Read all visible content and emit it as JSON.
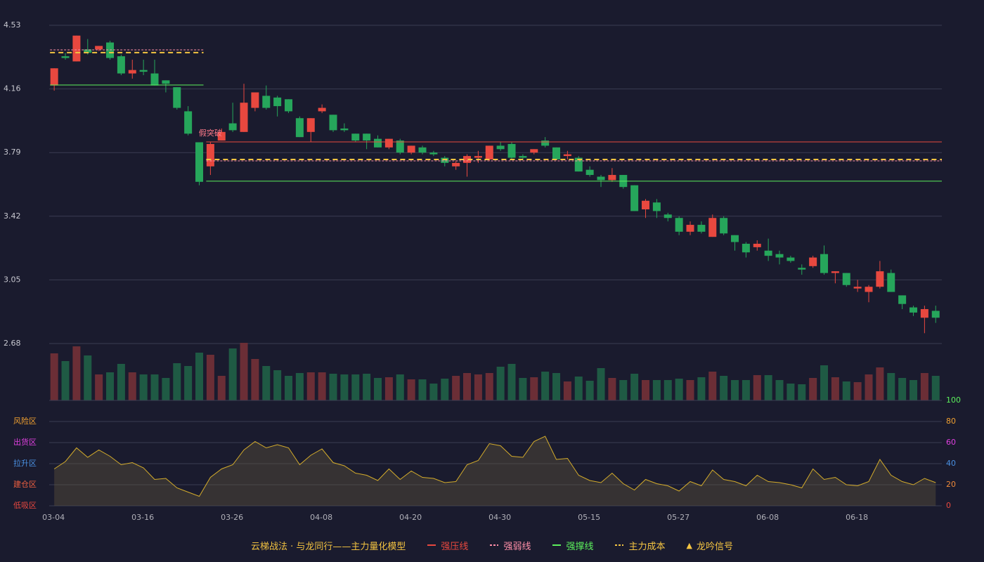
{
  "chart_data": [
    {
      "type": "candlestick",
      "categories": [
        "03-04",
        null,
        null,
        null,
        null,
        null,
        null,
        null,
        "03-16",
        null,
        null,
        null,
        null,
        null,
        null,
        null,
        "03-26",
        null,
        null,
        null,
        null,
        null,
        null,
        null,
        "04-08",
        null,
        null,
        null,
        null,
        null,
        null,
        null,
        "04-20",
        null,
        null,
        null,
        null,
        null,
        null,
        null,
        "04-30",
        null,
        null,
        null,
        null,
        null,
        null,
        null,
        "05-15",
        null,
        null,
        null,
        null,
        null,
        null,
        null,
        "05-27",
        null,
        null,
        null,
        null,
        null,
        null,
        null,
        "06-08",
        null,
        null,
        null,
        null,
        null,
        null,
        null,
        "06-18",
        null,
        null,
        null,
        null,
        null,
        null,
        null
      ],
      "open": [
        4.18,
        4.35,
        4.32,
        4.39,
        4.39,
        4.43,
        4.35,
        4.25,
        4.27,
        4.25,
        4.21,
        4.17,
        4.03,
        3.85,
        3.71,
        3.86,
        3.96,
        3.91,
        4.05,
        4.12,
        4.11,
        4.1,
        3.99,
        3.91,
        4.03,
        4.01,
        3.93,
        3.9,
        3.9,
        3.87,
        3.82,
        3.86,
        3.79,
        3.82,
        3.79,
        3.76,
        3.71,
        3.73,
        3.76,
        3.75,
        3.83,
        3.84,
        3.77,
        3.79,
        3.86,
        3.82,
        3.77,
        3.76,
        3.69,
        3.65,
        3.63,
        3.66,
        3.6,
        3.46,
        3.5,
        3.43,
        3.41,
        3.33,
        3.37,
        3.3,
        3.41,
        3.31,
        3.26,
        3.24,
        3.22,
        3.2,
        3.18,
        3.12,
        3.13,
        3.2,
        3.09,
        3.09,
        3.0,
        2.98,
        3.01,
        3.09,
        2.96,
        2.89,
        2.83,
        2.87
      ],
      "high": [
        4.28,
        4.37,
        4.47,
        4.45,
        4.41,
        4.44,
        4.36,
        4.33,
        4.33,
        4.33,
        4.21,
        4.17,
        4.06,
        3.85,
        3.85,
        3.93,
        4.08,
        4.19,
        4.14,
        4.18,
        4.12,
        4.1,
        4.0,
        3.99,
        4.07,
        4.01,
        3.96,
        3.9,
        3.9,
        3.89,
        3.87,
        3.87,
        3.83,
        3.83,
        3.8,
        3.77,
        3.74,
        3.78,
        3.8,
        3.83,
        3.85,
        3.85,
        3.78,
        3.81,
        3.88,
        3.82,
        3.8,
        3.77,
        3.71,
        3.66,
        3.7,
        3.66,
        3.6,
        3.52,
        3.52,
        3.44,
        3.42,
        3.39,
        3.39,
        3.43,
        3.42,
        3.31,
        3.27,
        3.28,
        3.29,
        3.22,
        3.19,
        3.14,
        3.19,
        3.25,
        3.1,
        3.09,
        3.05,
        3.02,
        3.16,
        3.11,
        2.96,
        2.9,
        2.9,
        2.9
      ],
      "low": [
        4.15,
        4.33,
        4.32,
        4.36,
        4.38,
        4.33,
        4.24,
        4.22,
        4.24,
        4.18,
        4.14,
        4.04,
        3.89,
        3.6,
        3.66,
        3.86,
        3.91,
        3.91,
        4.03,
        4.04,
        4.0,
        4.02,
        3.88,
        3.85,
        4.02,
        3.91,
        3.91,
        3.85,
        3.81,
        3.82,
        3.81,
        3.78,
        3.78,
        3.78,
        3.77,
        3.71,
        3.69,
        3.65,
        3.73,
        3.74,
        3.8,
        3.75,
        3.75,
        3.78,
        3.82,
        3.75,
        3.75,
        3.68,
        3.65,
        3.59,
        3.62,
        3.58,
        3.45,
        3.41,
        3.41,
        3.39,
        3.31,
        3.31,
        3.32,
        3.3,
        3.31,
        3.22,
        3.18,
        3.22,
        3.16,
        3.14,
        3.15,
        3.08,
        3.12,
        3.08,
        3.03,
        3.01,
        2.98,
        2.92,
        3.0,
        2.98,
        2.88,
        2.84,
        2.74,
        2.8
      ],
      "close": [
        4.28,
        4.34,
        4.47,
        4.37,
        4.41,
        4.34,
        4.25,
        4.27,
        4.26,
        4.18,
        4.19,
        4.05,
        3.9,
        3.62,
        3.84,
        3.91,
        3.92,
        4.08,
        4.14,
        4.05,
        4.06,
        4.03,
        3.88,
        3.99,
        4.05,
        3.92,
        3.92,
        3.86,
        3.86,
        3.82,
        3.87,
        3.79,
        3.83,
        3.79,
        3.78,
        3.73,
        3.73,
        3.77,
        3.77,
        3.83,
        3.81,
        3.76,
        3.76,
        3.81,
        3.83,
        3.75,
        3.78,
        3.68,
        3.66,
        3.63,
        3.66,
        3.59,
        3.45,
        3.51,
        3.45,
        3.41,
        3.33,
        3.37,
        3.33,
        3.41,
        3.32,
        3.27,
        3.21,
        3.26,
        3.19,
        3.18,
        3.16,
        3.11,
        3.18,
        3.09,
        3.1,
        3.02,
        3.01,
        3.01,
        3.1,
        2.98,
        2.91,
        2.86,
        2.88,
        2.83
      ],
      "up_color": "#e8483f",
      "down_color": "#26a65b",
      "ylim": [
        2.68,
        4.53
      ],
      "yticks": [
        2.68,
        3.05,
        3.42,
        3.79,
        4.16,
        4.53
      ],
      "grid": true,
      "legend_title": "云梯战法 · 与龙同行——主力量化模型",
      "series": [
        {
          "name": "强压线",
          "color": "#e8483f",
          "style": "solid",
          "segments": [
            {
              "value": 3.852,
              "from": 14,
              "to": 79
            }
          ]
        },
        {
          "name": "强弱线",
          "color": "#ff8fa8",
          "style": "dashed",
          "segments": [
            {
              "value": 4.387,
              "from": 0,
              "to": 13
            },
            {
              "value": 3.742,
              "from": 14,
              "to": 79
            }
          ]
        },
        {
          "name": "强撑线",
          "color": "#5cf05c",
          "style": "solid",
          "segments": [
            {
              "value": 4.183,
              "from": 0,
              "to": 13
            },
            {
              "value": 3.624,
              "from": 14,
              "to": 79
            }
          ]
        },
        {
          "name": "主力成本",
          "color": "#f5c542",
          "style": "dashed",
          "segments": [
            {
              "value": 4.371,
              "from": 0,
              "to": 13
            },
            {
              "value": 3.75,
              "from": 14,
              "to": 79
            }
          ]
        }
      ],
      "signal": {
        "name": "龙吟信号",
        "color": "#f5c542",
        "label_color": "#ff7a8a",
        "points": [
          {
            "index": 14,
            "label": "假突破"
          }
        ]
      }
    },
    {
      "type": "bar",
      "values": [
        67,
        56,
        77,
        64,
        37,
        40,
        52,
        40,
        37,
        37,
        32,
        53,
        49,
        68,
        65,
        35,
        74,
        82,
        59,
        49,
        43,
        35,
        39,
        40,
        40,
        38,
        37,
        37,
        38,
        32,
        33,
        37,
        30,
        30,
        24,
        31,
        35,
        39,
        37,
        39,
        48,
        52,
        32,
        33,
        41,
        39,
        27,
        34,
        28,
        46,
        32,
        29,
        38,
        29,
        29,
        29,
        31,
        29,
        33,
        41,
        35,
        29,
        29,
        36,
        36,
        29,
        24,
        23,
        32,
        50,
        33,
        27,
        26,
        37,
        47,
        39,
        32,
        29,
        39,
        35
      ],
      "up_color": "#6b2e36",
      "down_color": "#1f5a44",
      "ylim": [
        0,
        82
      ]
    },
    {
      "type": "line",
      "values": [
        35,
        42,
        55,
        46,
        53,
        47,
        39,
        41,
        36,
        25,
        26,
        17,
        13,
        9,
        27,
        35,
        39,
        53,
        61,
        55,
        58,
        55,
        39,
        48,
        54,
        41,
        38,
        31,
        29,
        24,
        35,
        25,
        33,
        27,
        26,
        22,
        23,
        39,
        43,
        59,
        57,
        47,
        46,
        61,
        66,
        44,
        45,
        29,
        24,
        22,
        31,
        21,
        15,
        25,
        21,
        19,
        14,
        23,
        19,
        34,
        25,
        23,
        19,
        29,
        23,
        22,
        20,
        17,
        35,
        25,
        27,
        20,
        19,
        23,
        44,
        29,
        23,
        20,
        26,
        22
      ],
      "color": "#d4ac2b",
      "fill": "rgba(110,95,60,0.35)",
      "ylim": [
        0,
        100
      ],
      "yticks": [
        0,
        20,
        40,
        60,
        80,
        100
      ],
      "ytick_colors": [
        "#e8483f",
        "#f08a3a",
        "#4a90e2",
        "#e040e0",
        "#f0a030",
        "#5cf05c"
      ],
      "zones": [
        {
          "label": "风险区",
          "value": 80,
          "color": "#f0a030"
        },
        {
          "label": "出货区",
          "value": 60,
          "color": "#e040e0"
        },
        {
          "label": "拉升区",
          "value": 40,
          "color": "#4a90e2"
        },
        {
          "label": "建仓区",
          "value": 20,
          "color": "#f06040"
        },
        {
          "label": "低吸区",
          "value": 0,
          "color": "#e8483f"
        }
      ]
    }
  ]
}
